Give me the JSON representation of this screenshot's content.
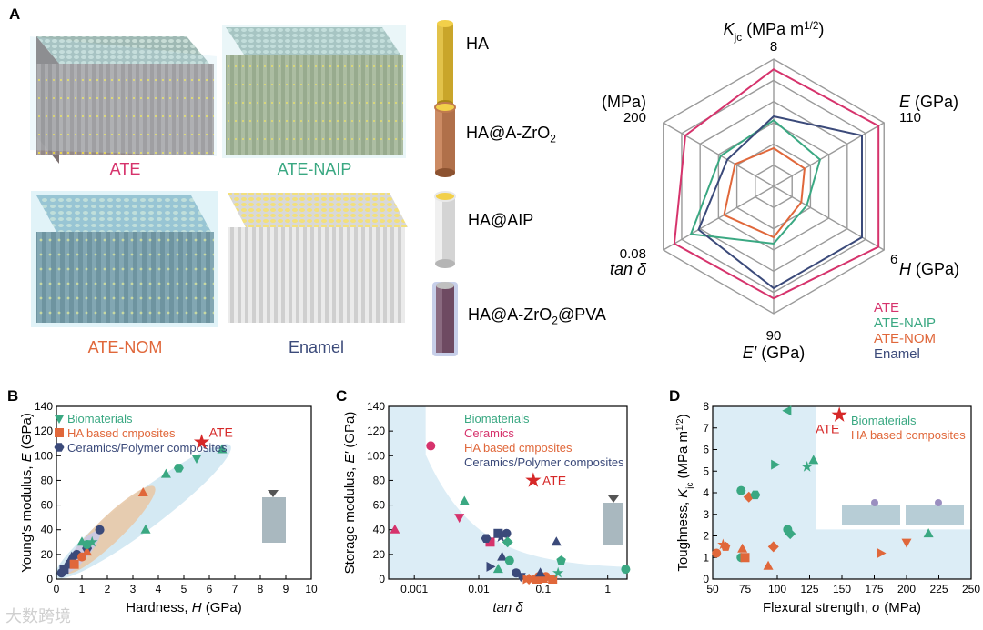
{
  "panelA": {
    "letter": "A",
    "blocks": [
      {
        "name": "ATE",
        "color": "#d6336c",
        "tint": "#8c7f7f"
      },
      {
        "name": "ATE-NAIP",
        "color": "#3aa882",
        "tint": "#8d9a6e"
      },
      {
        "name": "ATE-NOM",
        "color": "#e0673a",
        "tint": "#4f6d78"
      },
      {
        "name": "Enamel",
        "color": "#3b4a7a",
        "tint": "#cfcfcf"
      }
    ],
    "rods": [
      {
        "label_main": "HA",
        "label_sub": "",
        "label_tail": "",
        "body": "#c9a52a",
        "cap": "#f2d04a"
      },
      {
        "label_main": "HA@A-ZrO",
        "label_sub": "2",
        "label_tail": "",
        "body": "#b0704a",
        "cap": "#f2d04a"
      },
      {
        "label_main": "HA@AIP",
        "label_sub": "",
        "label_tail": "",
        "body": "#dcdcdc",
        "cap": "#f2d04a"
      },
      {
        "label_main": "HA@A-ZrO",
        "label_sub": "2",
        "label_tail": "@PVA",
        "body": "#7a5a7a",
        "cap": "#c0c0c0"
      }
    ]
  },
  "chart_data": [
    {
      "type": "radar",
      "axes": [
        {
          "symbol": "K",
          "sub": "jc",
          "unit": " (MPa m",
          "sup": "1/2",
          "end": ")",
          "max": "8"
        },
        {
          "symbol": "E",
          "sub": "",
          "unit": " (GPa)",
          "sup": "",
          "end": "",
          "max": "110"
        },
        {
          "symbol": "H",
          "sub": "",
          "unit": " (GPa)",
          "sup": "",
          "end": "",
          "max": "6"
        },
        {
          "symbol": "E′",
          "sub": "",
          "unit": " (GPa)",
          "sup": "",
          "end": "",
          "max": "90"
        },
        {
          "symbol": "tan δ",
          "sub": "",
          "unit": "",
          "sup": "",
          "end": "",
          "max": "0.08"
        },
        {
          "symbol": "σ",
          "sub": "",
          "unit": " (MPa)",
          "sup": "",
          "end": "",
          "max": "200"
        }
      ],
      "series": [
        {
          "name": "ATE",
          "color": "#d6336c",
          "values": [
            0.92,
            0.95,
            0.95,
            0.88,
            0.9,
            0.8
          ]
        },
        {
          "name": "ATE-NAIP",
          "color": "#3aa882",
          "values": [
            0.52,
            0.42,
            0.3,
            0.45,
            0.75,
            0.48
          ]
        },
        {
          "name": "ATE-NOM",
          "color": "#e0673a",
          "values": [
            0.3,
            0.28,
            0.25,
            0.4,
            0.45,
            0.35
          ]
        },
        {
          "name": "Enamel",
          "color": "#3b4a7a",
          "values": [
            0.55,
            0.8,
            0.8,
            0.8,
            0.68,
            0.42
          ]
        }
      ],
      "rings": 6
    },
    {
      "panel": "B",
      "type": "scatter",
      "xlabel_main": "Hardness, ",
      "xlabel_sym": "H",
      "xlabel_unit": " (GPa)",
      "ylabel_main": "Young's modulus, ",
      "ylabel_sym": "E",
      "ylabel_unit": " (GPa)",
      "xlim": [
        0,
        10
      ],
      "ylim": [
        0,
        140
      ],
      "xticks": [
        "0",
        "1",
        "2",
        "3",
        "4",
        "5",
        "6",
        "7",
        "8",
        "9",
        "10"
      ],
      "yticks": [
        "0",
        "20",
        "40",
        "60",
        "80",
        "100",
        "120",
        "140"
      ],
      "legend": [
        {
          "label": "Biomaterials",
          "color": "#3aa882"
        },
        {
          "label": "HA based cmposites",
          "color": "#e0673a"
        },
        {
          "label": "Ceramics/Polymer composites",
          "color": "#3b4a7a"
        }
      ],
      "ate_label": "ATE",
      "ate_point": [
        5.7,
        111
      ],
      "points": [
        {
          "x": 0.2,
          "y": 5,
          "c": "#3b4a7a",
          "m": "circle"
        },
        {
          "x": 0.3,
          "y": 8,
          "c": "#3b4a7a",
          "m": "square"
        },
        {
          "x": 0.5,
          "y": 12,
          "c": "#3b4a7a",
          "m": "hexagon"
        },
        {
          "x": 0.6,
          "y": 18,
          "c": "#3b4a7a",
          "m": "triangle"
        },
        {
          "x": 0.8,
          "y": 20,
          "c": "#3b4a7a",
          "m": "circle"
        },
        {
          "x": 1.2,
          "y": 25,
          "c": "#3b4a7a",
          "m": "hexagon"
        },
        {
          "x": 1.7,
          "y": 40,
          "c": "#3b4a7a",
          "m": "circle"
        },
        {
          "x": 0.7,
          "y": 12,
          "c": "#e0673a",
          "m": "square"
        },
        {
          "x": 1.0,
          "y": 18,
          "c": "#e0673a",
          "m": "circle"
        },
        {
          "x": 1.2,
          "y": 22,
          "c": "#e0673a",
          "m": "triangle"
        },
        {
          "x": 3.4,
          "y": 70,
          "c": "#e0673a",
          "m": "triangle"
        },
        {
          "x": 1.0,
          "y": 30,
          "c": "#3aa882",
          "m": "triangle"
        },
        {
          "x": 1.2,
          "y": 28,
          "c": "#3aa882",
          "m": "circle"
        },
        {
          "x": 1.4,
          "y": 30,
          "c": "#3aa882",
          "m": "star"
        },
        {
          "x": 3.5,
          "y": 40,
          "c": "#3aa882",
          "m": "triangle"
        },
        {
          "x": 4.3,
          "y": 85,
          "c": "#3aa882",
          "m": "triangle"
        },
        {
          "x": 4.8,
          "y": 90,
          "c": "#3aa882",
          "m": "hexagon"
        },
        {
          "x": 5.5,
          "y": 98,
          "c": "#3aa882",
          "m": "triangle-down"
        },
        {
          "x": 6.5,
          "y": 105,
          "c": "#3aa882",
          "m": "triangle"
        }
      ]
    },
    {
      "panel": "C",
      "type": "scatter",
      "xscale": "log",
      "xlabel_sym": "tan δ",
      "ylabel_main": "Storage modulus, ",
      "ylabel_sym": "E′",
      "ylabel_unit": " (GPa)",
      "xlim": [
        0.0004,
        2
      ],
      "ylim": [
        0,
        140
      ],
      "xticks": [
        {
          "v": 0.001,
          "t": "0.001"
        },
        {
          "v": 0.01,
          "t": "0.01"
        },
        {
          "v": 0.1,
          "t": "0.1"
        },
        {
          "v": 1,
          "t": "1"
        }
      ],
      "yticks": [
        "0",
        "20",
        "40",
        "60",
        "80",
        "100",
        "120",
        "140"
      ],
      "legend": [
        {
          "label": "Biomaterials",
          "color": "#3aa882"
        },
        {
          "label": "Ceramics",
          "color": "#d6336c"
        },
        {
          "label": "HA based cmposites",
          "color": "#e0673a"
        },
        {
          "label": "Ceramics/Polymer composites",
          "color": "#3b4a7a"
        }
      ],
      "ate_label": "ATE",
      "ate_point": [
        0.07,
        80
      ],
      "points": [
        {
          "x": 0.0005,
          "y": 40,
          "c": "#d6336c",
          "m": "triangle"
        },
        {
          "x": 0.0018,
          "y": 108,
          "c": "#d6336c",
          "m": "circle"
        },
        {
          "x": 0.005,
          "y": 50,
          "c": "#d6336c",
          "m": "triangle-down"
        },
        {
          "x": 0.006,
          "y": 63,
          "c": "#3aa882",
          "m": "triangle"
        },
        {
          "x": 0.015,
          "y": 30,
          "c": "#d6336c",
          "m": "square"
        },
        {
          "x": 0.013,
          "y": 33,
          "c": "#3b4a7a",
          "m": "hexagon"
        },
        {
          "x": 0.02,
          "y": 37,
          "c": "#3b4a7a",
          "m": "square"
        },
        {
          "x": 0.022,
          "y": 34,
          "c": "#3b4a7a",
          "m": "star"
        },
        {
          "x": 0.027,
          "y": 37,
          "c": "#3b4a7a",
          "m": "circle"
        },
        {
          "x": 0.028,
          "y": 30,
          "c": "#3aa882",
          "m": "diamond"
        },
        {
          "x": 0.023,
          "y": 18,
          "c": "#3b4a7a",
          "m": "triangle"
        },
        {
          "x": 0.03,
          "y": 15,
          "c": "#3aa882",
          "m": "circle"
        },
        {
          "x": 0.015,
          "y": 10,
          "c": "#3b4a7a",
          "m": "triangle-right"
        },
        {
          "x": 0.02,
          "y": 8,
          "c": "#3aa882",
          "m": "triangle"
        },
        {
          "x": 0.038,
          "y": 5,
          "c": "#3b4a7a",
          "m": "circle"
        },
        {
          "x": 0.045,
          "y": 2,
          "c": "#3b4a7a",
          "m": "triangle-down"
        },
        {
          "x": 0.06,
          "y": 0,
          "c": "#e0673a",
          "m": "diamond"
        },
        {
          "x": 0.085,
          "y": 2,
          "c": "#e0673a",
          "m": "circle"
        },
        {
          "x": 0.1,
          "y": 0,
          "c": "#e0673a",
          "m": "triangle"
        },
        {
          "x": 0.11,
          "y": 2,
          "c": "#e0673a",
          "m": "circle"
        },
        {
          "x": 0.08,
          "y": 0,
          "c": "#e0673a",
          "m": "square"
        },
        {
          "x": 0.14,
          "y": 0,
          "c": "#e0673a",
          "m": "square"
        },
        {
          "x": 0.055,
          "y": 0,
          "c": "#e0673a",
          "m": "triangle-right"
        },
        {
          "x": 0.09,
          "y": 5,
          "c": "#3b4a7a",
          "m": "triangle"
        },
        {
          "x": 0.17,
          "y": 5,
          "c": "#3aa882",
          "m": "star"
        },
        {
          "x": 0.19,
          "y": 15,
          "c": "#3aa882",
          "m": "pentagon"
        },
        {
          "x": 0.16,
          "y": 30,
          "c": "#3b4a7a",
          "m": "triangle"
        },
        {
          "x": 1.9,
          "y": 8,
          "c": "#3aa882",
          "m": "circle"
        }
      ]
    },
    {
      "panel": "D",
      "type": "scatter",
      "xlabel_main": "Flexural strength, ",
      "xlabel_sym": "σ",
      "xlabel_unit": " (MPa)",
      "ylabel_main": "Toughness, ",
      "ylabel_sym": "K",
      "ylabel_sub": "jc",
      "ylabel_unit": " (MPa m",
      "ylabel_sup": "1/2",
      "ylabel_end": ")",
      "xlim": [
        50,
        250
      ],
      "ylim": [
        0,
        8
      ],
      "xticks": [
        "50",
        "75",
        "100",
        "125",
        "150",
        "175",
        "200",
        "225",
        "250"
      ],
      "yticks": [
        "0",
        "1",
        "2",
        "3",
        "4",
        "5",
        "6",
        "7",
        "8"
      ],
      "legend": [
        {
          "label": "Biomaterials",
          "color": "#3aa882"
        },
        {
          "label": "HA based composites",
          "color": "#e0673a"
        }
      ],
      "ate_label": "ATE",
      "ate_point": [
        148,
        7.6
      ],
      "points": [
        {
          "x": 53,
          "y": 1.2,
          "c": "#e0673a",
          "m": "circle"
        },
        {
          "x": 58,
          "y": 1.6,
          "c": "#e0673a",
          "m": "star"
        },
        {
          "x": 60,
          "y": 1.5,
          "c": "#e0673a",
          "m": "pentagon"
        },
        {
          "x": 72,
          "y": 1.0,
          "c": "#3aa882",
          "m": "circle"
        },
        {
          "x": 73,
          "y": 1.4,
          "c": "#e0673a",
          "m": "triangle"
        },
        {
          "x": 75,
          "y": 1.0,
          "c": "#e0673a",
          "m": "square"
        },
        {
          "x": 72,
          "y": 4.1,
          "c": "#3aa882",
          "m": "circle"
        },
        {
          "x": 78,
          "y": 3.8,
          "c": "#e0673a",
          "m": "diamond"
        },
        {
          "x": 83,
          "y": 3.9,
          "c": "#3aa882",
          "m": "hexagon"
        },
        {
          "x": 93,
          "y": 0.6,
          "c": "#e0673a",
          "m": "triangle"
        },
        {
          "x": 97,
          "y": 1.5,
          "c": "#e0673a",
          "m": "diamond"
        },
        {
          "x": 98,
          "y": 5.3,
          "c": "#3aa882",
          "m": "triangle-right"
        },
        {
          "x": 108,
          "y": 2.3,
          "c": "#3aa882",
          "m": "circle"
        },
        {
          "x": 110,
          "y": 2.1,
          "c": "#3aa882",
          "m": "diamond"
        },
        {
          "x": 108,
          "y": 7.8,
          "c": "#3aa882",
          "m": "triangle-left"
        },
        {
          "x": 123,
          "y": 5.2,
          "c": "#3aa882",
          "m": "star"
        },
        {
          "x": 128,
          "y": 5.5,
          "c": "#3aa882",
          "m": "triangle"
        },
        {
          "x": 180,
          "y": 1.2,
          "c": "#e0673a",
          "m": "triangle-right"
        },
        {
          "x": 200,
          "y": 1.7,
          "c": "#e0673a",
          "m": "triangle-down"
        },
        {
          "x": 217,
          "y": 2.1,
          "c": "#3aa882",
          "m": "triangle"
        }
      ]
    }
  ],
  "watermark": "大数跨境"
}
